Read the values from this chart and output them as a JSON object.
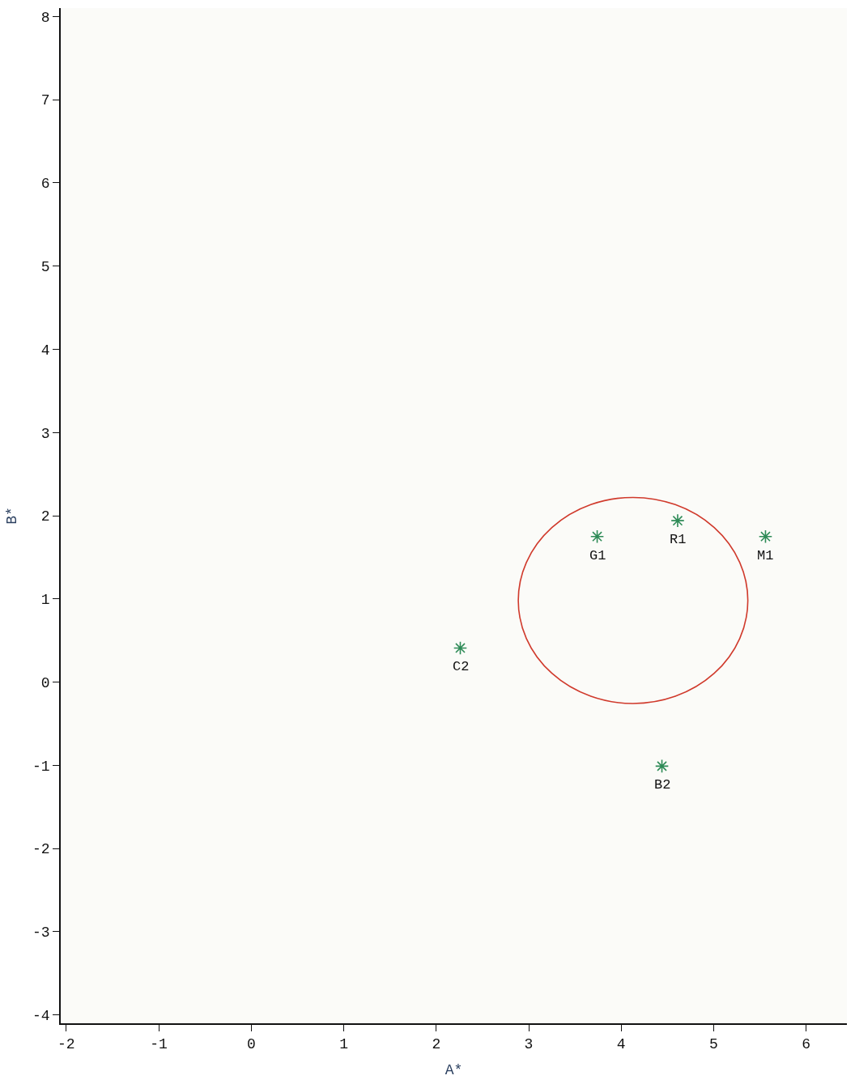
{
  "chart_data": {
    "type": "scatter",
    "xlabel": "A*",
    "ylabel": "B*",
    "xlim": [
      -2.06,
      6.44
    ],
    "ylim": [
      -4.1,
      8.1
    ],
    "xticks": [
      -2,
      -1,
      0,
      1,
      2,
      3,
      4,
      5,
      6
    ],
    "yticks": [
      -4,
      -3,
      -2,
      -1,
      0,
      1,
      2,
      3,
      4,
      5,
      6,
      7,
      8
    ],
    "grid": false,
    "marker": "cross",
    "series": [
      {
        "color": "#2e8b57",
        "x": [
          3.74,
          4.61,
          5.56,
          2.26,
          4.44
        ],
        "values": [
          1.75,
          1.94,
          1.75,
          0.41,
          -1.01
        ]
      }
    ],
    "annotations": [
      {
        "text": "G1",
        "x": 3.74,
        "y": 1.75
      },
      {
        "text": "R1",
        "x": 4.61,
        "y": 1.94
      },
      {
        "text": "M1",
        "x": 5.56,
        "y": 1.75
      },
      {
        "text": "C2",
        "x": 2.26,
        "y": 0.41
      },
      {
        "text": "B2",
        "x": 4.44,
        "y": -1.01
      }
    ]
  }
}
